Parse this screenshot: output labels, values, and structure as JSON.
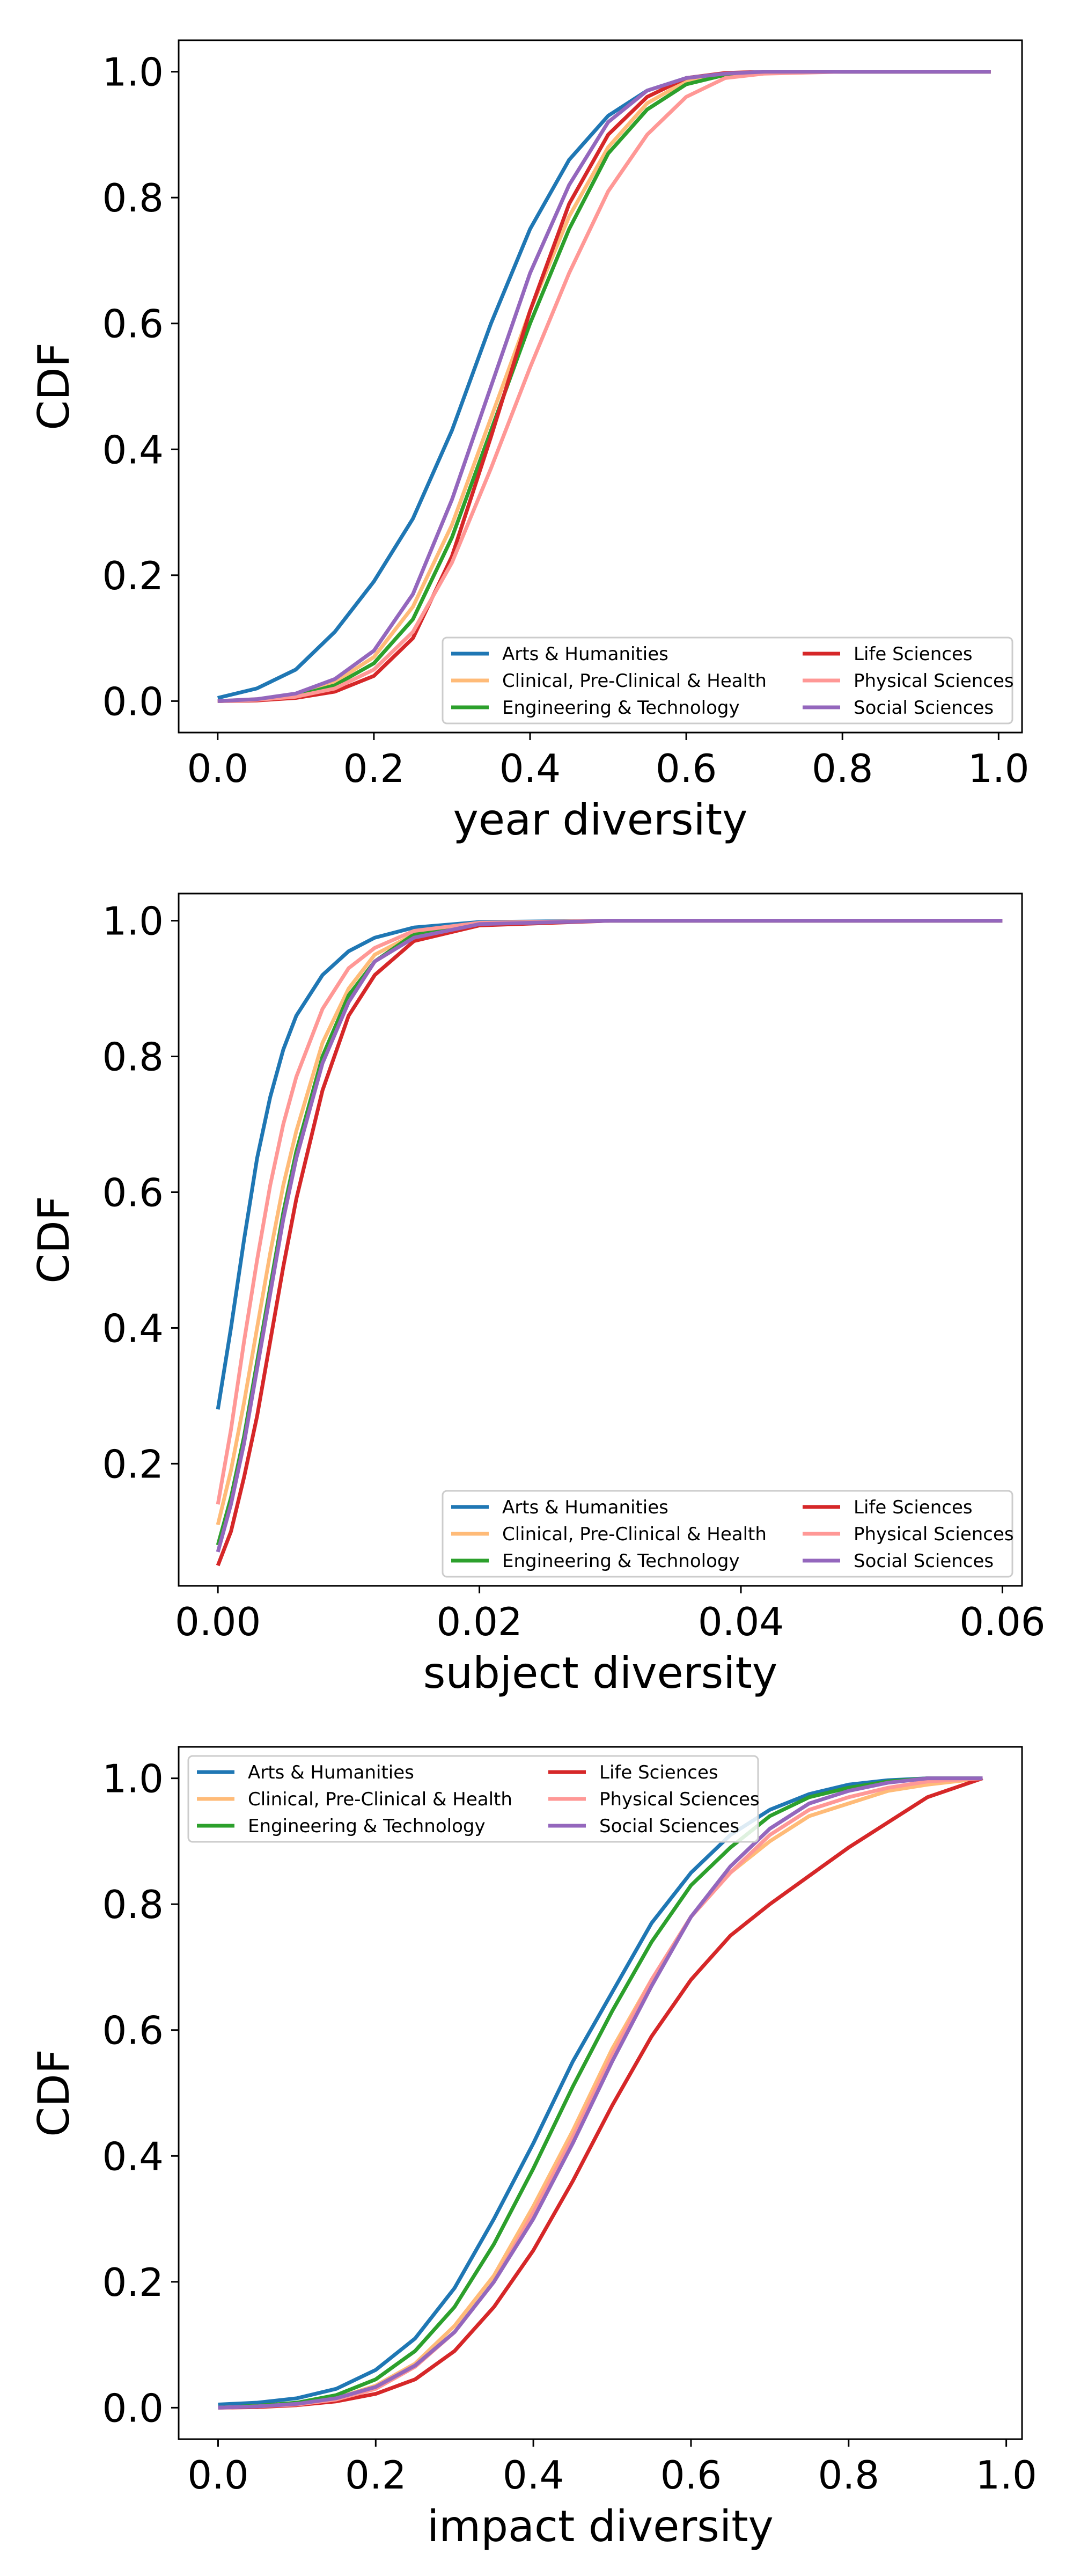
{
  "chart_data": [
    {
      "type": "line",
      "xlabel": "year diversity",
      "ylabel": "CDF",
      "xlim": [
        -0.05,
        1.03
      ],
      "ylim": [
        -0.05,
        1.05
      ],
      "xticks": [
        "0.0",
        "0.2",
        "0.4",
        "0.6",
        "0.8",
        "1.0"
      ],
      "xtick_values": [
        0,
        0.2,
        0.4,
        0.6,
        0.8,
        1.0
      ],
      "yticks": [
        "0.0",
        "0.2",
        "0.4",
        "0.6",
        "0.8",
        "1.0"
      ],
      "ytick_values": [
        0,
        0.2,
        0.4,
        0.6,
        0.8,
        1.0
      ],
      "legend_location": "lower-right",
      "grid": false,
      "series": [
        {
          "name": "Arts & Humanities",
          "color": "#1f77b4",
          "x": [
            0,
            0.05,
            0.1,
            0.15,
            0.2,
            0.25,
            0.3,
            0.35,
            0.4,
            0.45,
            0.5,
            0.55,
            0.6,
            0.65,
            0.7,
            0.8,
            0.9,
            0.99
          ],
          "y": [
            0.005,
            0.02,
            0.05,
            0.11,
            0.19,
            0.29,
            0.43,
            0.6,
            0.75,
            0.86,
            0.93,
            0.97,
            0.99,
            0.997,
            1.0,
            1.0,
            1.0,
            1.0
          ]
        },
        {
          "name": "Clinical, Pre-Clinical & Health",
          "color": "#ffbb78",
          "x": [
            0,
            0.05,
            0.1,
            0.15,
            0.2,
            0.25,
            0.3,
            0.35,
            0.4,
            0.45,
            0.5,
            0.55,
            0.6,
            0.65,
            0.7,
            0.8,
            0.9,
            0.99
          ],
          "y": [
            0.0,
            0.003,
            0.01,
            0.03,
            0.07,
            0.15,
            0.28,
            0.45,
            0.62,
            0.77,
            0.88,
            0.95,
            0.985,
            0.996,
            1.0,
            1.0,
            1.0,
            1.0
          ]
        },
        {
          "name": "Engineering & Technology",
          "color": "#2ca02c",
          "x": [
            0,
            0.05,
            0.1,
            0.15,
            0.2,
            0.25,
            0.3,
            0.35,
            0.4,
            0.45,
            0.5,
            0.55,
            0.6,
            0.65,
            0.7,
            0.8,
            0.9,
            0.99
          ],
          "y": [
            0.0,
            0.002,
            0.008,
            0.025,
            0.06,
            0.13,
            0.26,
            0.43,
            0.6,
            0.75,
            0.87,
            0.94,
            0.98,
            0.995,
            1.0,
            1.0,
            1.0,
            1.0
          ]
        },
        {
          "name": "Life Sciences",
          "color": "#d62728",
          "x": [
            0,
            0.05,
            0.1,
            0.15,
            0.2,
            0.25,
            0.3,
            0.35,
            0.4,
            0.45,
            0.5,
            0.55,
            0.6,
            0.65,
            0.7,
            0.8,
            0.9,
            0.99
          ],
          "y": [
            0.0,
            0.001,
            0.005,
            0.015,
            0.04,
            0.1,
            0.23,
            0.42,
            0.62,
            0.79,
            0.9,
            0.96,
            0.99,
            0.998,
            1.0,
            1.0,
            1.0,
            1.0
          ]
        },
        {
          "name": "Physical Sciences",
          "color": "#ff9896",
          "x": [
            0,
            0.05,
            0.1,
            0.15,
            0.2,
            0.25,
            0.3,
            0.35,
            0.4,
            0.45,
            0.5,
            0.55,
            0.6,
            0.65,
            0.7,
            0.8,
            0.9,
            0.99
          ],
          "y": [
            0.0,
            0.002,
            0.007,
            0.02,
            0.05,
            0.11,
            0.22,
            0.37,
            0.53,
            0.68,
            0.81,
            0.9,
            0.96,
            0.99,
            0.997,
            1.0,
            1.0,
            1.0
          ]
        },
        {
          "name": "Social Sciences",
          "color": "#9467bd",
          "x": [
            0,
            0.05,
            0.1,
            0.15,
            0.2,
            0.25,
            0.3,
            0.35,
            0.4,
            0.45,
            0.5,
            0.55,
            0.6,
            0.65,
            0.7,
            0.8,
            0.9,
            0.99
          ],
          "y": [
            0.0,
            0.003,
            0.012,
            0.035,
            0.08,
            0.17,
            0.32,
            0.5,
            0.68,
            0.82,
            0.92,
            0.97,
            0.99,
            0.997,
            1.0,
            1.0,
            1.0,
            1.0
          ]
        }
      ]
    },
    {
      "type": "line",
      "xlabel": "subject diversity",
      "ylabel": "CDF",
      "xlim": [
        -0.003,
        0.0615
      ],
      "ylim": [
        0.02,
        1.04
      ],
      "xticks": [
        "0.00",
        "0.02",
        "0.04",
        "0.06"
      ],
      "xtick_values": [
        0,
        0.02,
        0.04,
        0.06
      ],
      "yticks": [
        "0.2",
        "0.4",
        "0.6",
        "0.8",
        "1.0"
      ],
      "ytick_values": [
        0.2,
        0.4,
        0.6,
        0.8,
        1.0
      ],
      "legend_location": "lower-right",
      "grid": false,
      "series": [
        {
          "name": "Arts & Humanities",
          "color": "#1f77b4",
          "x": [
            0,
            0.001,
            0.002,
            0.003,
            0.004,
            0.005,
            0.006,
            0.008,
            0.01,
            0.012,
            0.015,
            0.02,
            0.03,
            0.04,
            0.05,
            0.06
          ],
          "y": [
            0.28,
            0.4,
            0.53,
            0.65,
            0.74,
            0.81,
            0.86,
            0.92,
            0.955,
            0.975,
            0.99,
            0.998,
            1.0,
            1.0,
            1.0,
            1.0
          ]
        },
        {
          "name": "Clinical, Pre-Clinical & Health",
          "color": "#ffbb78",
          "x": [
            0,
            0.001,
            0.002,
            0.003,
            0.004,
            0.005,
            0.006,
            0.008,
            0.01,
            0.012,
            0.015,
            0.02,
            0.03,
            0.04,
            0.05,
            0.06
          ],
          "y": [
            0.11,
            0.19,
            0.29,
            0.4,
            0.51,
            0.61,
            0.69,
            0.82,
            0.9,
            0.95,
            0.98,
            0.996,
            1.0,
            1.0,
            1.0,
            1.0
          ]
        },
        {
          "name": "Engineering & Technology",
          "color": "#2ca02c",
          "x": [
            0,
            0.001,
            0.002,
            0.003,
            0.004,
            0.005,
            0.006,
            0.008,
            0.01,
            0.012,
            0.015,
            0.02,
            0.03,
            0.04,
            0.05,
            0.06
          ],
          "y": [
            0.08,
            0.15,
            0.24,
            0.35,
            0.46,
            0.57,
            0.66,
            0.8,
            0.89,
            0.94,
            0.98,
            0.995,
            1.0,
            1.0,
            1.0,
            1.0
          ]
        },
        {
          "name": "Life Sciences",
          "color": "#d62728",
          "x": [
            0,
            0.001,
            0.002,
            0.003,
            0.004,
            0.005,
            0.006,
            0.008,
            0.01,
            0.012,
            0.015,
            0.02,
            0.03,
            0.04,
            0.05,
            0.06
          ],
          "y": [
            0.05,
            0.1,
            0.18,
            0.27,
            0.38,
            0.49,
            0.59,
            0.75,
            0.86,
            0.92,
            0.97,
            0.993,
            1.0,
            1.0,
            1.0,
            1.0
          ]
        },
        {
          "name": "Physical Sciences",
          "color": "#ff9896",
          "x": [
            0,
            0.001,
            0.002,
            0.003,
            0.004,
            0.005,
            0.006,
            0.008,
            0.01,
            0.012,
            0.015,
            0.02,
            0.03,
            0.04,
            0.05,
            0.06
          ],
          "y": [
            0.14,
            0.25,
            0.38,
            0.5,
            0.61,
            0.7,
            0.77,
            0.87,
            0.93,
            0.96,
            0.985,
            0.997,
            1.0,
            1.0,
            1.0,
            1.0
          ]
        },
        {
          "name": "Social Sciences",
          "color": "#9467bd",
          "x": [
            0,
            0.001,
            0.002,
            0.003,
            0.004,
            0.005,
            0.006,
            0.008,
            0.01,
            0.012,
            0.015,
            0.02,
            0.03,
            0.04,
            0.05,
            0.06
          ],
          "y": [
            0.07,
            0.14,
            0.23,
            0.34,
            0.45,
            0.56,
            0.65,
            0.79,
            0.88,
            0.94,
            0.975,
            0.995,
            1.0,
            1.0,
            1.0,
            1.0
          ]
        }
      ]
    },
    {
      "type": "line",
      "xlabel": "impact diversity",
      "ylabel": "CDF",
      "xlim": [
        -0.05,
        1.02
      ],
      "ylim": [
        -0.05,
        1.05
      ],
      "xticks": [
        "0.0",
        "0.2",
        "0.4",
        "0.6",
        "0.8",
        "1.0"
      ],
      "xtick_values": [
        0,
        0.2,
        0.4,
        0.6,
        0.8,
        1.0
      ],
      "yticks": [
        "0.0",
        "0.2",
        "0.4",
        "0.6",
        "0.8",
        "1.0"
      ],
      "ytick_values": [
        0,
        0.2,
        0.4,
        0.6,
        0.8,
        1.0
      ],
      "legend_location": "upper-left",
      "grid": false,
      "series": [
        {
          "name": "Arts & Humanities",
          "color": "#1f77b4",
          "x": [
            0,
            0.05,
            0.1,
            0.15,
            0.2,
            0.25,
            0.3,
            0.35,
            0.4,
            0.45,
            0.5,
            0.55,
            0.6,
            0.65,
            0.7,
            0.75,
            0.8,
            0.85,
            0.9,
            0.97
          ],
          "y": [
            0.005,
            0.008,
            0.015,
            0.03,
            0.06,
            0.11,
            0.19,
            0.3,
            0.42,
            0.55,
            0.66,
            0.77,
            0.85,
            0.91,
            0.95,
            0.975,
            0.99,
            0.997,
            1.0,
            1.0
          ]
        },
        {
          "name": "Clinical, Pre-Clinical & Health",
          "color": "#ffbb78",
          "x": [
            0,
            0.05,
            0.1,
            0.15,
            0.2,
            0.25,
            0.3,
            0.35,
            0.4,
            0.45,
            0.5,
            0.55,
            0.6,
            0.65,
            0.7,
            0.75,
            0.8,
            0.85,
            0.9,
            0.97
          ],
          "y": [
            0.0,
            0.002,
            0.006,
            0.015,
            0.035,
            0.07,
            0.13,
            0.21,
            0.32,
            0.44,
            0.57,
            0.68,
            0.78,
            0.85,
            0.9,
            0.94,
            0.96,
            0.98,
            0.99,
            1.0
          ]
        },
        {
          "name": "Engineering & Technology",
          "color": "#2ca02c",
          "x": [
            0,
            0.05,
            0.1,
            0.15,
            0.2,
            0.25,
            0.3,
            0.35,
            0.4,
            0.45,
            0.5,
            0.55,
            0.6,
            0.65,
            0.7,
            0.75,
            0.8,
            0.85,
            0.9,
            0.97
          ],
          "y": [
            0.0,
            0.003,
            0.008,
            0.02,
            0.045,
            0.09,
            0.16,
            0.26,
            0.38,
            0.51,
            0.63,
            0.74,
            0.83,
            0.89,
            0.94,
            0.97,
            0.985,
            0.995,
            1.0,
            1.0
          ]
        },
        {
          "name": "Life Sciences",
          "color": "#d62728",
          "x": [
            0,
            0.05,
            0.1,
            0.15,
            0.2,
            0.25,
            0.3,
            0.35,
            0.4,
            0.45,
            0.5,
            0.55,
            0.6,
            0.65,
            0.7,
            0.75,
            0.8,
            0.85,
            0.9,
            0.97
          ],
          "y": [
            0.0,
            0.001,
            0.004,
            0.01,
            0.022,
            0.045,
            0.09,
            0.16,
            0.25,
            0.36,
            0.48,
            0.59,
            0.68,
            0.75,
            0.8,
            0.845,
            0.89,
            0.93,
            0.97,
            1.0
          ]
        },
        {
          "name": "Physical Sciences",
          "color": "#ff9896",
          "x": [
            0,
            0.05,
            0.1,
            0.15,
            0.2,
            0.25,
            0.3,
            0.35,
            0.4,
            0.45,
            0.5,
            0.55,
            0.6,
            0.65,
            0.7,
            0.75,
            0.8,
            0.85,
            0.9,
            0.97
          ],
          "y": [
            0.0,
            0.002,
            0.005,
            0.013,
            0.03,
            0.065,
            0.12,
            0.2,
            0.31,
            0.43,
            0.56,
            0.68,
            0.78,
            0.85,
            0.91,
            0.95,
            0.97,
            0.985,
            0.995,
            1.0
          ]
        },
        {
          "name": "Social Sciences",
          "color": "#9467bd",
          "x": [
            0,
            0.05,
            0.1,
            0.15,
            0.2,
            0.25,
            0.3,
            0.35,
            0.4,
            0.45,
            0.5,
            0.55,
            0.6,
            0.65,
            0.7,
            0.75,
            0.8,
            0.85,
            0.9,
            0.97
          ],
          "y": [
            0.0,
            0.002,
            0.006,
            0.015,
            0.033,
            0.067,
            0.12,
            0.2,
            0.3,
            0.42,
            0.55,
            0.67,
            0.78,
            0.86,
            0.92,
            0.96,
            0.98,
            0.993,
            1.0,
            1.0
          ]
        }
      ]
    }
  ]
}
